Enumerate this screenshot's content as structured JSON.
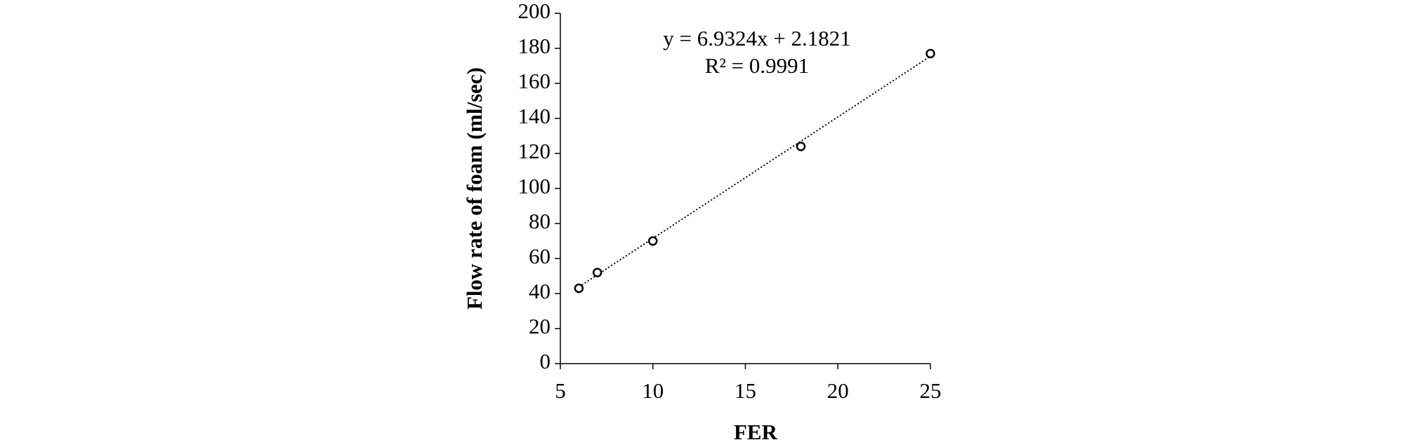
{
  "chart_data": {
    "type": "scatter",
    "x_label": "FER",
    "y_label": "Flow rate of foam (ml/sec)",
    "x": [
      6,
      7,
      10,
      18,
      25
    ],
    "values": [
      43,
      52,
      70,
      124,
      177
    ],
    "color": "#000000",
    "xlim": [
      5,
      25
    ],
    "xticks": [
      5,
      10,
      15,
      20,
      25
    ],
    "ylim": [
      0,
      200
    ],
    "yticks": [
      0,
      20,
      40,
      60,
      80,
      100,
      120,
      140,
      160,
      180,
      200
    ],
    "grid": false,
    "trendline": {
      "slope": 6.9324,
      "intercept": 2.1821,
      "label": "y = 6.9324x + 2.1821",
      "r2_label": "R² = 0.9991"
    }
  }
}
